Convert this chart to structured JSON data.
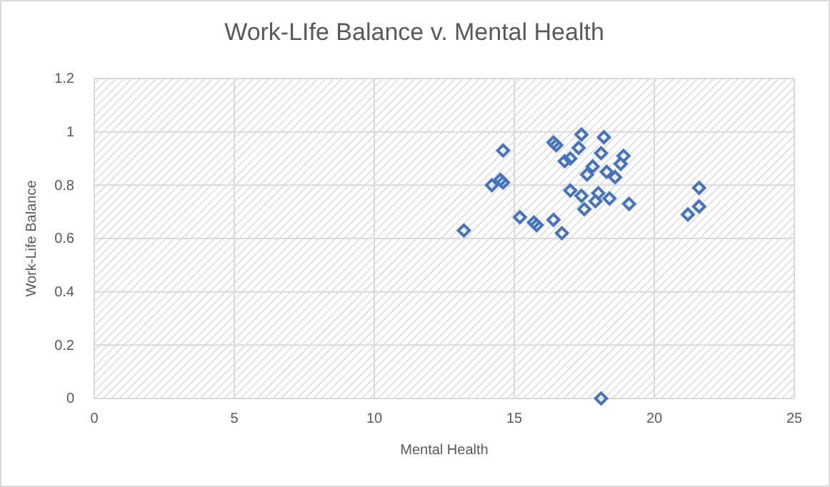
{
  "chart_data": {
    "type": "scatter",
    "title": "Work-LIfe Balance v. Mental Health",
    "xlabel": "Mental Health",
    "ylabel": "Work-Life Balance",
    "x": [
      13.2,
      14.2,
      14.5,
      14.6,
      14.6,
      15.2,
      15.7,
      15.8,
      16.4,
      16.5,
      16.4,
      16.7,
      16.8,
      17.0,
      17.4,
      17.3,
      18.2,
      18.1,
      18.9,
      18.8,
      17.8,
      17.6,
      18.3,
      18.6,
      17.0,
      17.4,
      18.0,
      17.9,
      18.4,
      19.1,
      17.5,
      21.6,
      21.6,
      21.2,
      18.1
    ],
    "series": [
      {
        "color": "#4472c4",
        "values": [
          0.63,
          0.8,
          0.82,
          0.81,
          0.93,
          0.68,
          0.66,
          0.65,
          0.96,
          0.95,
          0.67,
          0.62,
          0.89,
          0.9,
          0.99,
          0.94,
          0.98,
          0.92,
          0.91,
          0.88,
          0.87,
          0.84,
          0.85,
          0.83,
          0.78,
          0.76,
          0.77,
          0.74,
          0.75,
          0.73,
          0.71,
          0.79,
          0.72,
          0.69,
          0
        ]
      }
    ],
    "xlim": [
      0,
      25
    ],
    "xticks": [
      0,
      5,
      10,
      15,
      20,
      25
    ],
    "ylim": [
      0,
      1.2
    ],
    "yticks": [
      0,
      {
        "value": 0.2,
        "label": "0.2"
      },
      {
        "value": 0.4,
        "label": "0.4"
      },
      {
        "value": 0.6,
        "label": "0.6"
      },
      {
        "value": 0.8,
        "label": "0.8"
      },
      1,
      {
        "value": 1.2,
        "label": "1.2"
      }
    ],
    "grid": true,
    "marker": "diamond"
  }
}
